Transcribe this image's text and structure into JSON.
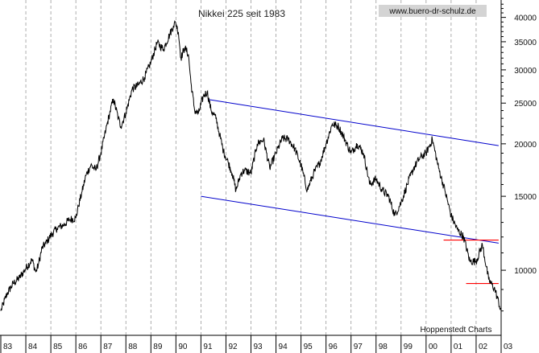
{
  "chart_data": {
    "type": "line",
    "title": "Nikkei 225 seit 1983",
    "watermark": "www.buero-dr-schulz.de",
    "source": "Hoppenstedt Charts",
    "yscale": "log",
    "ylim": [
      7000,
      44000
    ],
    "xlim": [
      1983.0,
      2003.0
    ],
    "y_ticks": [
      10000,
      15000,
      20000,
      25000,
      30000,
      35000,
      40000
    ],
    "y_tick_labels": [
      "10000",
      "15000",
      "20000",
      "25000",
      "30000",
      "35000",
      "40000"
    ],
    "x_tick_labels": [
      "83",
      "84",
      "85",
      "86",
      "87",
      "88",
      "89",
      "90",
      "91",
      "92",
      "93",
      "94",
      "95",
      "96",
      "97",
      "98",
      "99",
      "00",
      "01",
      "02",
      "03"
    ],
    "grid": "vertical-dashed",
    "series": [
      {
        "color": "#000000",
        "x": [
          1983.0,
          1983.25,
          1983.5,
          1983.75,
          1984.0,
          1984.25,
          1984.4,
          1984.5,
          1984.65,
          1984.8,
          1985.0,
          1985.25,
          1985.5,
          1985.75,
          1986.0,
          1986.1,
          1986.25,
          1986.4,
          1986.6,
          1986.8,
          1987.0,
          1987.2,
          1987.35,
          1987.5,
          1987.7,
          1987.8,
          1988.0,
          1988.25,
          1988.5,
          1988.75,
          1989.0,
          1989.25,
          1989.5,
          1989.75,
          1989.9,
          1989.99,
          1990.1,
          1990.2,
          1990.35,
          1990.5,
          1990.6,
          1990.75,
          1990.9,
          1991.1,
          1991.25,
          1991.4,
          1991.6,
          1991.75,
          1991.9,
          1992.1,
          1992.25,
          1992.4,
          1992.6,
          1992.75,
          1993.0,
          1993.25,
          1993.5,
          1993.75,
          1994.0,
          1994.25,
          1994.5,
          1994.75,
          1995.0,
          1995.25,
          1995.5,
          1995.75,
          1996.0,
          1996.25,
          1996.5,
          1996.75,
          1997.0,
          1997.25,
          1997.5,
          1997.75,
          1998.0,
          1998.25,
          1998.5,
          1998.75,
          1999.0,
          1999.25,
          1999.5,
          1999.75,
          2000.0,
          2000.25,
          2000.5,
          2000.75,
          2001.0,
          2001.25,
          2001.5,
          2001.75,
          2002.0,
          2002.25,
          2002.5,
          2002.75,
          2003.0
        ],
        "y": [
          8000,
          8800,
          9300,
          9600,
          10100,
          10600,
          9900,
          10300,
          11300,
          11600,
          12100,
          12600,
          12800,
          13200,
          13300,
          14200,
          15400,
          16800,
          17800,
          17300,
          19000,
          21600,
          23600,
          25600,
          23000,
          22000,
          23700,
          27000,
          27600,
          28800,
          31300,
          34800,
          33600,
          36400,
          38200,
          38900,
          36800,
          32000,
          33900,
          32600,
          28000,
          24000,
          23600,
          26000,
          26600,
          24100,
          23000,
          21000,
          19200,
          18000,
          17000,
          15500,
          17000,
          17300,
          17000,
          20000,
          20500,
          17500,
          19000,
          20600,
          20500,
          19500,
          17800,
          15500,
          17000,
          18000,
          20000,
          22300,
          22000,
          20500,
          19000,
          20000,
          19000,
          16000,
          16500,
          15500,
          15000,
          13500,
          14500,
          16000,
          17500,
          18500,
          19000,
          20500,
          17500,
          15500,
          13500,
          12500,
          12000,
          10500,
          10500,
          11500,
          9500,
          9000,
          8000
        ]
      }
    ],
    "channel": {
      "color": "#0000cc",
      "upper": {
        "x": [
          1991.3,
          2002.9
        ],
        "y": [
          25500,
          19800
        ]
      },
      "lower": {
        "x": [
          1991.0,
          2002.9
        ],
        "y": [
          15000,
          11600
        ]
      }
    },
    "support_lines": {
      "color": "#ff0000",
      "lines": [
        {
          "x": [
            2000.7,
            2002.9
          ],
          "y": [
            11800,
            11800
          ]
        },
        {
          "x": [
            2001.6,
            2002.9
          ],
          "y": [
            9300,
            9300
          ]
        }
      ]
    }
  }
}
